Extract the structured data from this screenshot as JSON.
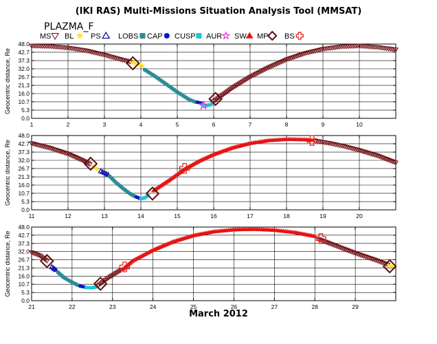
{
  "header": {
    "title": "(IKI RAS) Multi-Missions Situation Analysis Tool (MMSAT)",
    "mission": "PLAZMA_F"
  },
  "legend": [
    {
      "label": "MS",
      "marker": "triangle-down-open",
      "color": "#6e0f14"
    },
    {
      "label": "BL",
      "marker": "star-filled",
      "color": "#ffe21a"
    },
    {
      "label": "PS",
      "marker": "triangle-up-open",
      "color": "#1414aa"
    },
    {
      "label": "LOBS",
      "marker": "square-filled",
      "color": "#2a8c95"
    },
    {
      "label": "CAP",
      "marker": "circle-filled",
      "color": "#0c14c8"
    },
    {
      "label": "CUSP",
      "marker": "square-filled",
      "color": "#18c8d8"
    },
    {
      "label": "AUR",
      "marker": "star-open",
      "color": "#e63ce6"
    },
    {
      "label": "SW",
      "marker": "triangle-up-filled",
      "color": "#e61414"
    },
    {
      "label": "MP",
      "marker": "diamond-open",
      "color": "#5a0f10"
    },
    {
      "label": "BS",
      "marker": "cross-open",
      "color": "#e61414"
    }
  ],
  "footer": {
    "date_label": "March 2012"
  },
  "chart_data": [
    {
      "type": "scatter",
      "ylabel": "Geocentric distance, Re",
      "xlim": [
        1,
        11
      ],
      "ylim": [
        0,
        48
      ],
      "yticks": [
        "0.0",
        "5.3",
        "10.7",
        "16.0",
        "21.3",
        "26.7",
        "32.0",
        "37.3",
        "42.7",
        "48.0"
      ],
      "xticks": [
        "1",
        "2",
        "3",
        "4",
        "5",
        "6",
        "7",
        "8",
        "9",
        "10"
      ],
      "grid": true,
      "segments": [
        {
          "region": "MS",
          "x": [
            1.0,
            1.5,
            2.0,
            2.5,
            3.0,
            3.4,
            3.7
          ],
          "y": [
            46.9,
            46.6,
            45.6,
            43.8,
            41.0,
            38.4,
            36.6
          ]
        },
        {
          "region": "BL",
          "x": [
            3.76,
            3.9,
            4.05
          ],
          "y": [
            36.0,
            35.2,
            34.0
          ]
        },
        {
          "region": "LOBS",
          "x": [
            4.1,
            4.4,
            4.7,
            5.0,
            5.3,
            5.5
          ],
          "y": [
            31.5,
            27.0,
            22.0,
            17.0,
            12.5,
            10.5
          ]
        },
        {
          "region": "CAP",
          "x": [
            5.55,
            5.65
          ],
          "y": [
            10.4,
            9.9
          ]
        },
        {
          "region": "CUSP",
          "x": [
            5.7,
            5.8,
            5.9,
            5.95
          ],
          "y": [
            8.8,
            8.2,
            8.7,
            9.2
          ]
        },
        {
          "region": "AUR",
          "x": [
            5.72
          ],
          "y": [
            8.4
          ]
        },
        {
          "region": "MS",
          "x": [
            6.0,
            6.5,
            7.0,
            7.5,
            8.0,
            8.5,
            9.0,
            9.5,
            10.0,
            10.5,
            11.0
          ],
          "y": [
            11.0,
            19.5,
            26.8,
            32.8,
            38.0,
            42.0,
            44.8,
            46.4,
            46.9,
            46.0,
            44.4
          ]
        }
      ],
      "mp": [
        {
          "x": 3.78,
          "y": 35.6
        },
        {
          "x": 6.05,
          "y": 12.5
        }
      ]
    },
    {
      "type": "scatter",
      "ylabel": "Geocentric distance, Re",
      "xlim": [
        11,
        21
      ],
      "ylim": [
        0,
        48
      ],
      "yticks": [
        "0.0",
        "5.3",
        "10.7",
        "16.0",
        "21.3",
        "26.7",
        "32.0",
        "37.3",
        "42.7",
        "48.0"
      ],
      "xticks": [
        "11",
        "12",
        "13",
        "14",
        "15",
        "16",
        "17",
        "18",
        "19",
        "20"
      ],
      "grid": true,
      "segments": [
        {
          "region": "MS",
          "x": [
            11.0,
            11.5,
            12.0,
            12.4,
            12.6
          ],
          "y": [
            43.0,
            40.0,
            36.2,
            32.0,
            29.5
          ]
        },
        {
          "region": "BL",
          "x": [
            12.7,
            12.8
          ],
          "y": [
            28.2,
            26.0
          ]
        },
        {
          "region": "PS",
          "x": [
            12.9,
            13.0,
            13.1
          ],
          "y": [
            25.0,
            23.9,
            22.8
          ]
        },
        {
          "region": "LOBS",
          "x": [
            13.15,
            13.3,
            13.5,
            13.7,
            13.85
          ],
          "y": [
            21.5,
            18.0,
            14.0,
            10.5,
            8.5
          ]
        },
        {
          "region": "CAP",
          "x": [
            13.88,
            13.95
          ],
          "y": [
            8.3,
            7.6
          ]
        },
        {
          "region": "CUSP",
          "x": [
            14.0,
            14.1,
            14.2
          ],
          "y": [
            7.2,
            7.7,
            9.2
          ]
        },
        {
          "region": "SW",
          "x": [
            14.35,
            14.8,
            15.2,
            15.6,
            16.0,
            16.5,
            17.0,
            17.5,
            18.0,
            18.5,
            18.7
          ],
          "y": [
            12.5,
            19.5,
            26.3,
            31.5,
            35.8,
            40.0,
            43.0,
            44.8,
            45.6,
            45.4,
            45.0
          ]
        },
        {
          "region": "MS",
          "x": [
            18.8,
            19.2,
            19.6,
            20.0,
            20.5,
            21.0
          ],
          "y": [
            44.6,
            43.0,
            41.0,
            38.5,
            35.0,
            30.5
          ]
        }
      ],
      "mp": [
        {
          "x": 12.62,
          "y": 29.8
        },
        {
          "x": 14.32,
          "y": 10.5
        }
      ],
      "bs": [
        {
          "x": 15.2,
          "y": 26.8
        },
        {
          "x": 18.7,
          "y": 44.8
        }
      ]
    },
    {
      "type": "scatter",
      "ylabel": "Geocentric distance, Re",
      "xlim": [
        21,
        30
      ],
      "ylim": [
        0,
        48
      ],
      "yticks": [
        "0.0",
        "5.3",
        "10.7",
        "16.0",
        "21.3",
        "26.7",
        "32.0",
        "37.3",
        "42.7",
        "48.0"
      ],
      "xticks": [
        "21",
        "22",
        "23",
        "24",
        "25",
        "26",
        "27",
        "28",
        "29"
      ],
      "grid": true,
      "segments": [
        {
          "region": "MS",
          "x": [
            21.0,
            21.2,
            21.38
          ],
          "y": [
            31.5,
            29.5,
            26.0
          ]
        },
        {
          "region": "PS",
          "x": [
            21.5,
            21.6
          ],
          "y": [
            22.0,
            20.0
          ]
        },
        {
          "region": "LOBS",
          "x": [
            21.65,
            21.8,
            22.0,
            22.15
          ],
          "y": [
            18.5,
            15.0,
            12.0,
            10.0
          ]
        },
        {
          "region": "CAP",
          "x": [
            22.2,
            22.3
          ],
          "y": [
            9.5,
            9.0
          ]
        },
        {
          "region": "CUSP",
          "x": [
            22.35,
            22.5,
            22.6
          ],
          "y": [
            8.5,
            8.4,
            9.0
          ]
        },
        {
          "region": "MS",
          "x": [
            22.65,
            22.9,
            23.2
          ],
          "y": [
            10.0,
            15.0,
            19.8
          ]
        },
        {
          "region": "SW",
          "x": [
            23.25,
            23.5,
            24.0,
            24.5,
            25.0,
            25.5,
            26.0,
            26.5,
            27.0,
            27.5,
            28.0
          ],
          "y": [
            20.5,
            26.0,
            33.0,
            38.5,
            42.5,
            45.0,
            46.3,
            46.6,
            46.0,
            44.5,
            42.0
          ]
        },
        {
          "region": "MS",
          "x": [
            28.1,
            28.5,
            29.0,
            29.5,
            29.8
          ],
          "y": [
            40.0,
            36.0,
            31.0,
            26.5,
            23.5
          ]
        },
        {
          "region": "BL",
          "x": [
            29.82,
            29.95
          ],
          "y": [
            23.0,
            22.5
          ]
        }
      ],
      "mp": [
        {
          "x": 21.38,
          "y": 25.8
        },
        {
          "x": 22.7,
          "y": 11.0
        },
        {
          "x": 29.85,
          "y": 22.4
        }
      ],
      "bs": [
        {
          "x": 23.3,
          "y": 22.0
        },
        {
          "x": 28.15,
          "y": 40.5
        }
      ]
    }
  ]
}
